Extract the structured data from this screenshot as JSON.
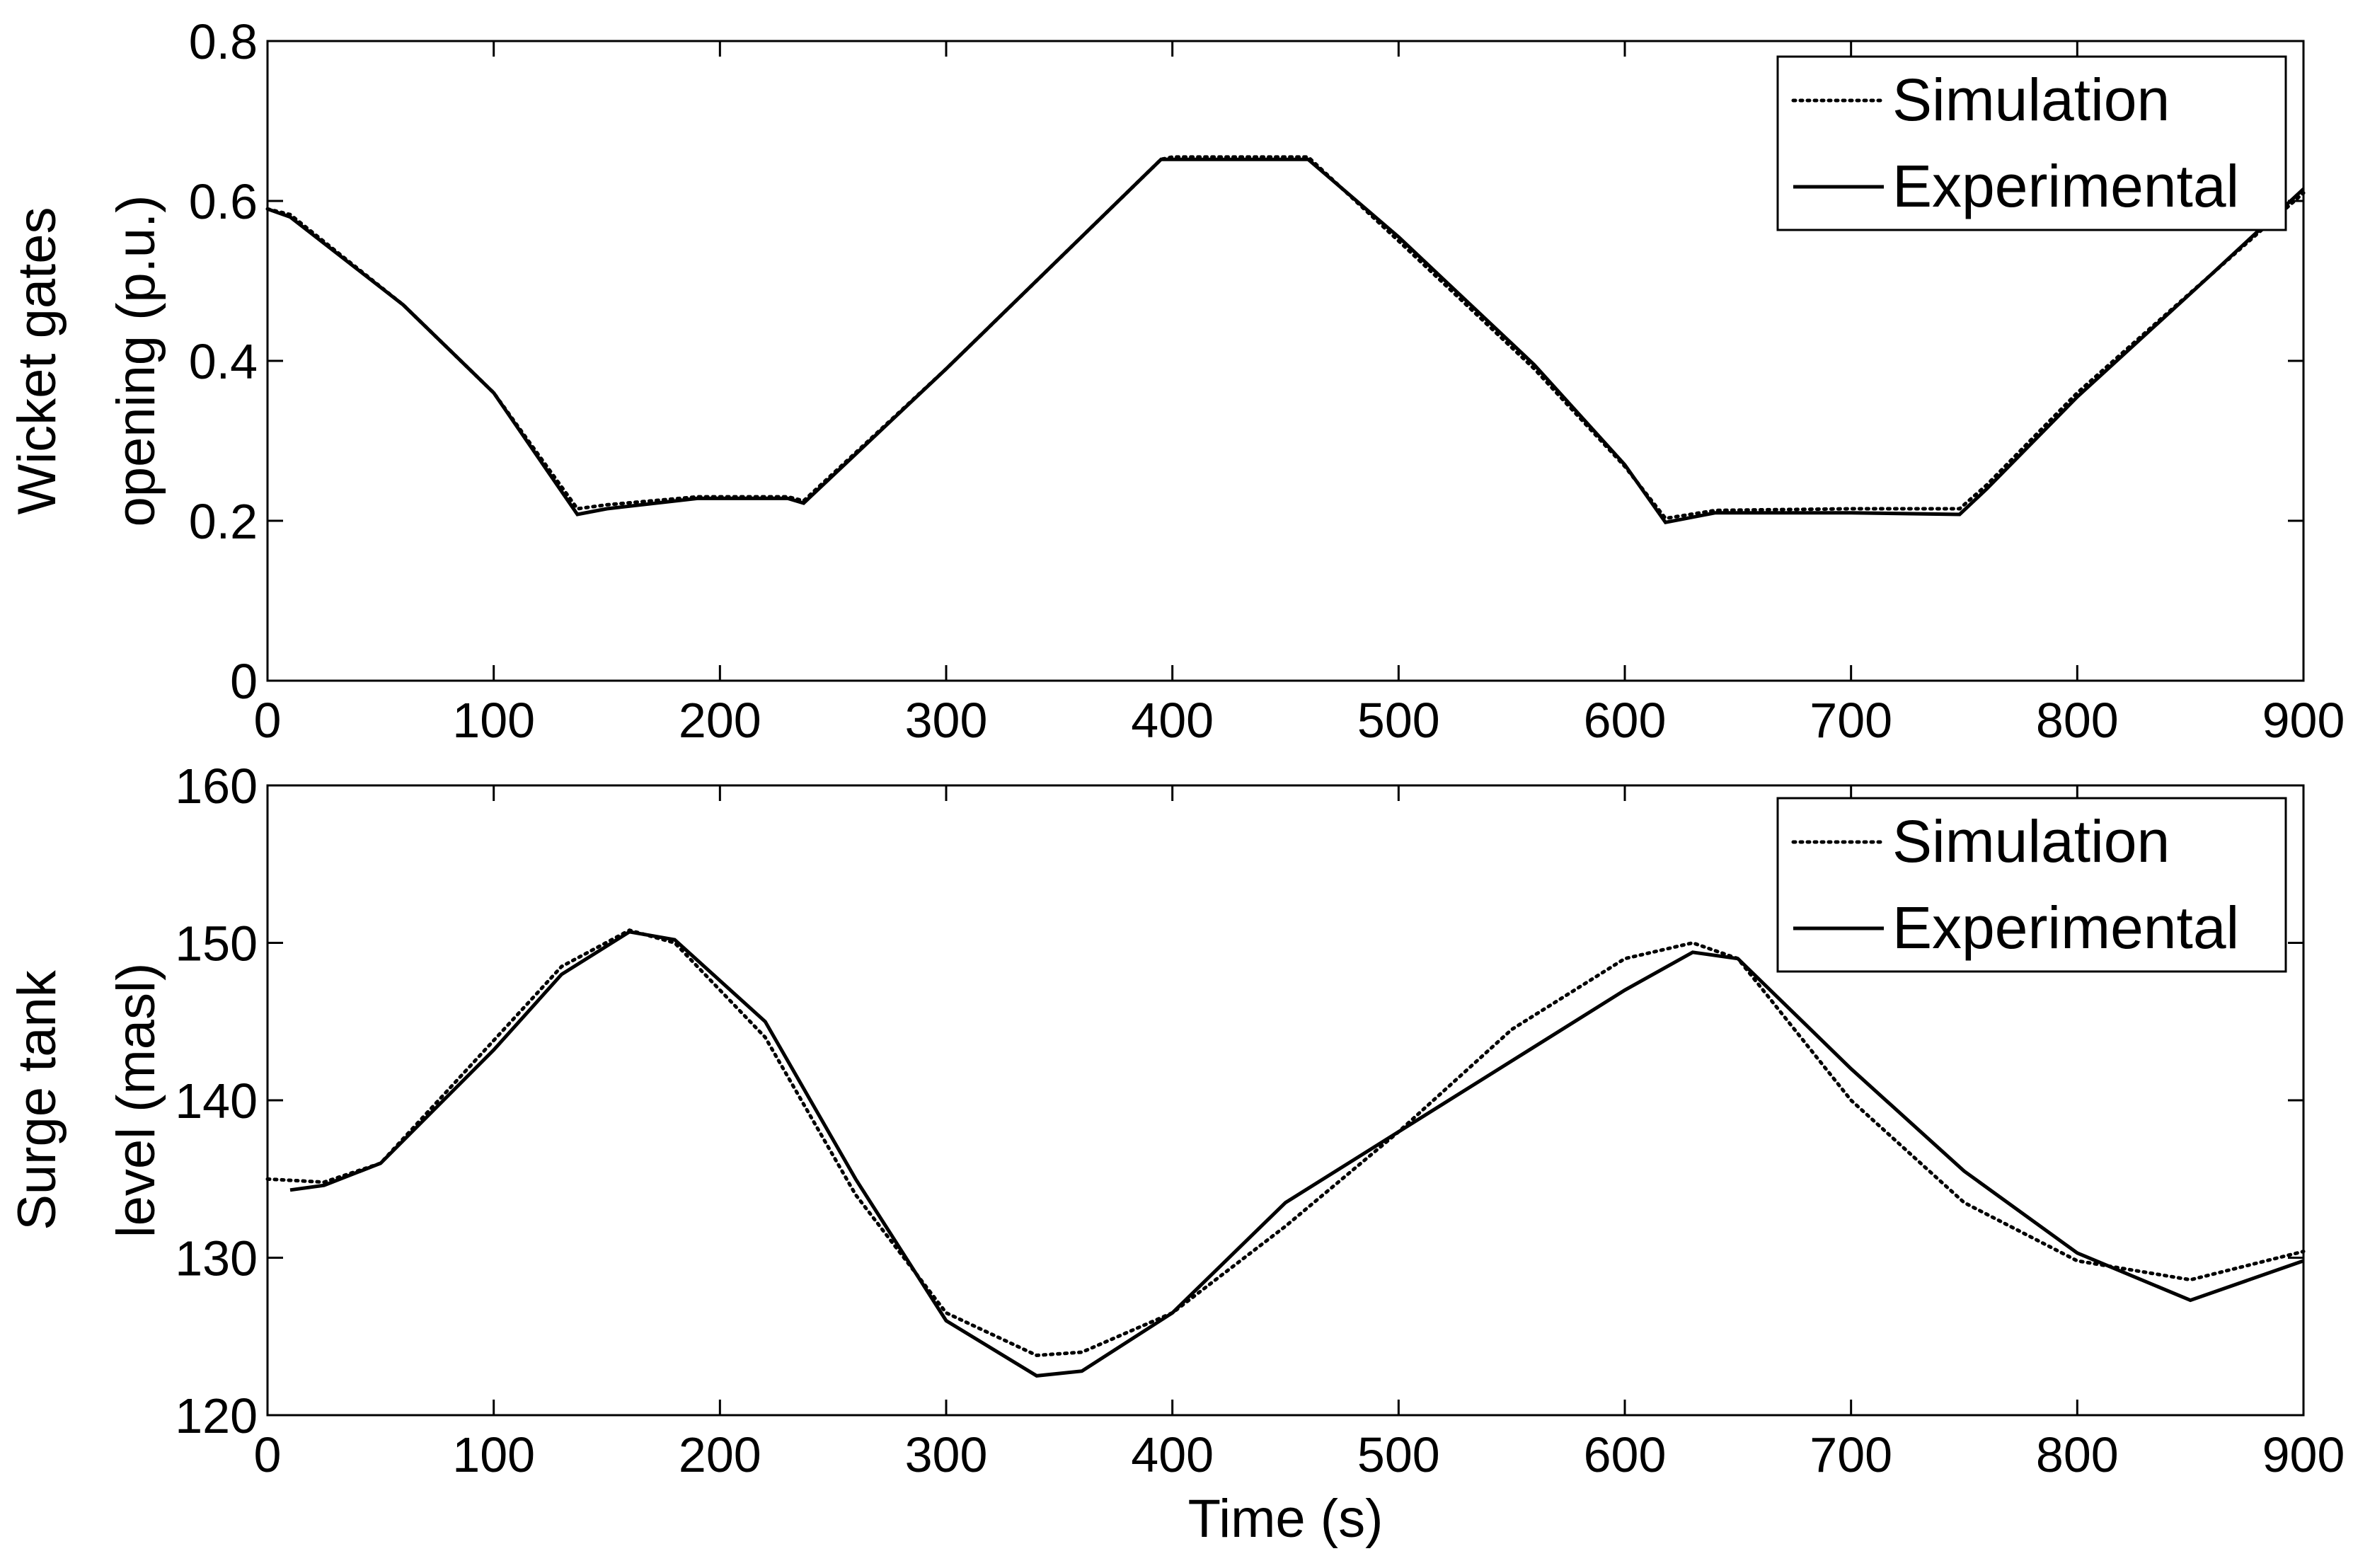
{
  "chart_data": [
    {
      "type": "line",
      "ylabel": [
        "Wicket gates",
        "opening (p.u.)"
      ],
      "xlim": [
        0,
        900
      ],
      "ylim": [
        0,
        0.8
      ],
      "xticks": [
        "0",
        "100",
        "200",
        "300",
        "400",
        "500",
        "600",
        "700",
        "800",
        "900"
      ],
      "yticks": [
        "0",
        "0.2",
        "0.4",
        "0.6",
        "0.8"
      ],
      "legend_position": "top-right",
      "series": [
        {
          "name": "Simulation",
          "style": "dotted",
          "x": [
            0,
            10,
            60,
            100,
            137,
            150,
            190,
            230,
            237,
            300,
            395,
            400,
            460,
            500,
            560,
            600,
            618,
            640,
            700,
            748,
            760,
            800,
            860,
            900
          ],
          "y": [
            0.59,
            0.583,
            0.47,
            0.36,
            0.215,
            0.22,
            0.23,
            0.23,
            0.225,
            0.39,
            0.652,
            0.655,
            0.655,
            0.55,
            0.39,
            0.268,
            0.203,
            0.213,
            0.215,
            0.215,
            0.245,
            0.36,
            0.51,
            0.61
          ]
        },
        {
          "name": "Experimental",
          "style": "solid",
          "x": [
            0,
            10,
            60,
            100,
            137,
            150,
            190,
            230,
            237,
            300,
            395,
            400,
            460,
            500,
            560,
            600,
            618,
            640,
            700,
            748,
            760,
            800,
            860,
            900
          ],
          "y": [
            0.59,
            0.58,
            0.47,
            0.36,
            0.208,
            0.215,
            0.228,
            0.228,
            0.222,
            0.39,
            0.652,
            0.652,
            0.652,
            0.555,
            0.395,
            0.27,
            0.198,
            0.21,
            0.21,
            0.208,
            0.24,
            0.355,
            0.51,
            0.615
          ]
        }
      ]
    },
    {
      "type": "line",
      "xlabel": "Time (s)",
      "ylabel": [
        "Surge tank",
        "level (masl)"
      ],
      "xlim": [
        0,
        900
      ],
      "ylim": [
        120,
        160
      ],
      "xticks": [
        "0",
        "100",
        "200",
        "300",
        "400",
        "500",
        "600",
        "700",
        "800",
        "900"
      ],
      "yticks": [
        "120",
        "130",
        "140",
        "150",
        "160"
      ],
      "legend_position": "top-right",
      "series": [
        {
          "name": "Simulation",
          "style": "dotted",
          "x": [
            0,
            25,
            50,
            100,
            130,
            160,
            180,
            220,
            260,
            300,
            340,
            360,
            400,
            450,
            500,
            550,
            600,
            630,
            650,
            700,
            750,
            800,
            850,
            900
          ],
          "y": [
            135,
            134.8,
            136,
            143.8,
            148.5,
            150.8,
            150,
            144,
            134,
            126.5,
            123.8,
            124,
            126.5,
            132,
            138,
            144.5,
            149,
            150,
            149,
            140,
            133.5,
            129.8,
            128.6,
            130.4
          ]
        },
        {
          "name": "Experimental",
          "style": "solid",
          "x": [
            10,
            25,
            50,
            100,
            130,
            160,
            180,
            220,
            260,
            300,
            340,
            360,
            400,
            450,
            500,
            550,
            600,
            630,
            650,
            700,
            750,
            800,
            850,
            900
          ],
          "y": [
            134.3,
            134.6,
            136,
            143.2,
            148,
            150.7,
            150.2,
            145,
            135,
            126,
            122.5,
            122.8,
            126.5,
            133.5,
            138,
            142.5,
            147,
            149.4,
            149,
            142,
            135.5,
            130.3,
            127.3,
            129.8
          ]
        }
      ]
    }
  ]
}
